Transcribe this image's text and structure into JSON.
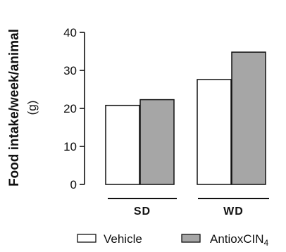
{
  "chart_data": {
    "type": "bar",
    "categories": [
      "SD",
      "WD"
    ],
    "series": [
      {
        "name": "Vehicle",
        "values": [
          20.8,
          27.6
        ],
        "color": "#ffffff"
      },
      {
        "name": "AntioxCIN",
        "subscript": "4",
        "values": [
          22.3,
          34.8
        ],
        "color": "#a6a6a6"
      }
    ],
    "ylabel": "Food intake/week/animal",
    "yunit": "(g)",
    "ylim": [
      0,
      40
    ],
    "yticks": [
      0,
      10,
      20,
      30,
      40
    ],
    "grid": false,
    "legend": "bottom"
  }
}
